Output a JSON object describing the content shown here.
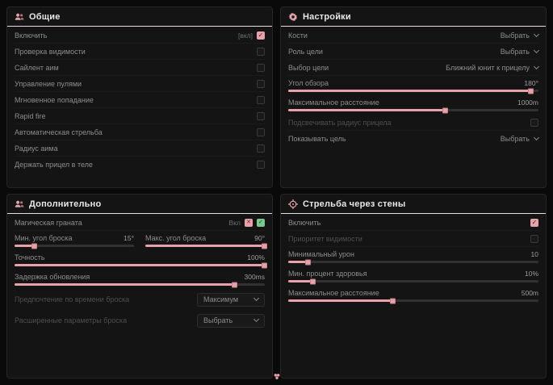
{
  "colors": {
    "background": "#0a0a0a",
    "panel": "#141414",
    "accent": "#e8a2aa",
    "green": "#79c98a",
    "text": "#8d8d8d",
    "text_dim": "#4e4e4e",
    "title": "#e8e8e8"
  },
  "icons": {
    "check": "✓",
    "cross": "✕"
  },
  "panels": {
    "general": {
      "title": "Общие",
      "icon": "users-icon",
      "rows": [
        {
          "label": "Включить",
          "hint": "[вкл]",
          "checked": true
        },
        {
          "label": "Проверка видимости",
          "checked": false
        },
        {
          "label": "Сайлент аим",
          "checked": false
        },
        {
          "label": "Управление пулями",
          "checked": false
        },
        {
          "label": "Мгновенное попадание",
          "checked": false
        },
        {
          "label": "Rapid fire",
          "checked": false
        },
        {
          "label": "Автоматическая стрельба",
          "checked": false
        },
        {
          "label": "Радиус аима",
          "checked": false
        },
        {
          "label": "Держать прицел в теле",
          "checked": false
        }
      ]
    },
    "settings": {
      "title": "Настройки",
      "icon": "gear-icon",
      "bones": {
        "label": "Кости",
        "value": "Выбрать"
      },
      "target_role": {
        "label": "Роль цели",
        "value": "Выбрать"
      },
      "target_choice": {
        "label": "Выбор цели",
        "value": "Ближний юнит к прицелу"
      },
      "fov": {
        "label": "Угол обзора",
        "value": "180°",
        "percent": 97
      },
      "max_distance": {
        "label": "Максимальное расстояние",
        "value": "1000m",
        "percent": 63
      },
      "highlight_radius": {
        "label": "Подсвечивать радиус прицела",
        "checked": false
      },
      "show_target": {
        "label": "Показывать цель",
        "value": "Выбрать"
      }
    },
    "additional": {
      "title": "Дополнительно",
      "icon": "users-icon",
      "magic_grenade": {
        "label": "Магическая граната",
        "hint": "Вкл",
        "enabled": true
      },
      "min_throw_angle": {
        "label": "Мин. угол броска",
        "value": "15°",
        "percent": 17
      },
      "max_throw_angle": {
        "label": "Макс. угол броска",
        "value": "90°",
        "percent": 100
      },
      "accuracy": {
        "label": "Точность",
        "value": "100%",
        "percent": 100
      },
      "update_delay": {
        "label": "Задержка обновления",
        "value": "300ms",
        "percent": 88
      },
      "throw_time_preference": {
        "label": "Предпочтение по времени броска",
        "value": "Максимум"
      },
      "advanced_throw_params": {
        "label": "Расширенные параметры броска",
        "value": "Выбрать"
      }
    },
    "wallbang": {
      "title": "Стрельба через стены",
      "icon": "crosshair-icon",
      "enable": {
        "label": "Включить",
        "checked": true
      },
      "visibility_priority": {
        "label": "Приоритет видимости",
        "checked": false
      },
      "min_damage": {
        "label": "Минимальный урон",
        "value": "10",
        "percent": 8
      },
      "min_health_percent": {
        "label": "Мин. процент здоровья",
        "value": "10%",
        "percent": 10
      },
      "max_distance": {
        "label": "Максимальное расстояние",
        "value": "500m",
        "percent": 42
      }
    }
  }
}
